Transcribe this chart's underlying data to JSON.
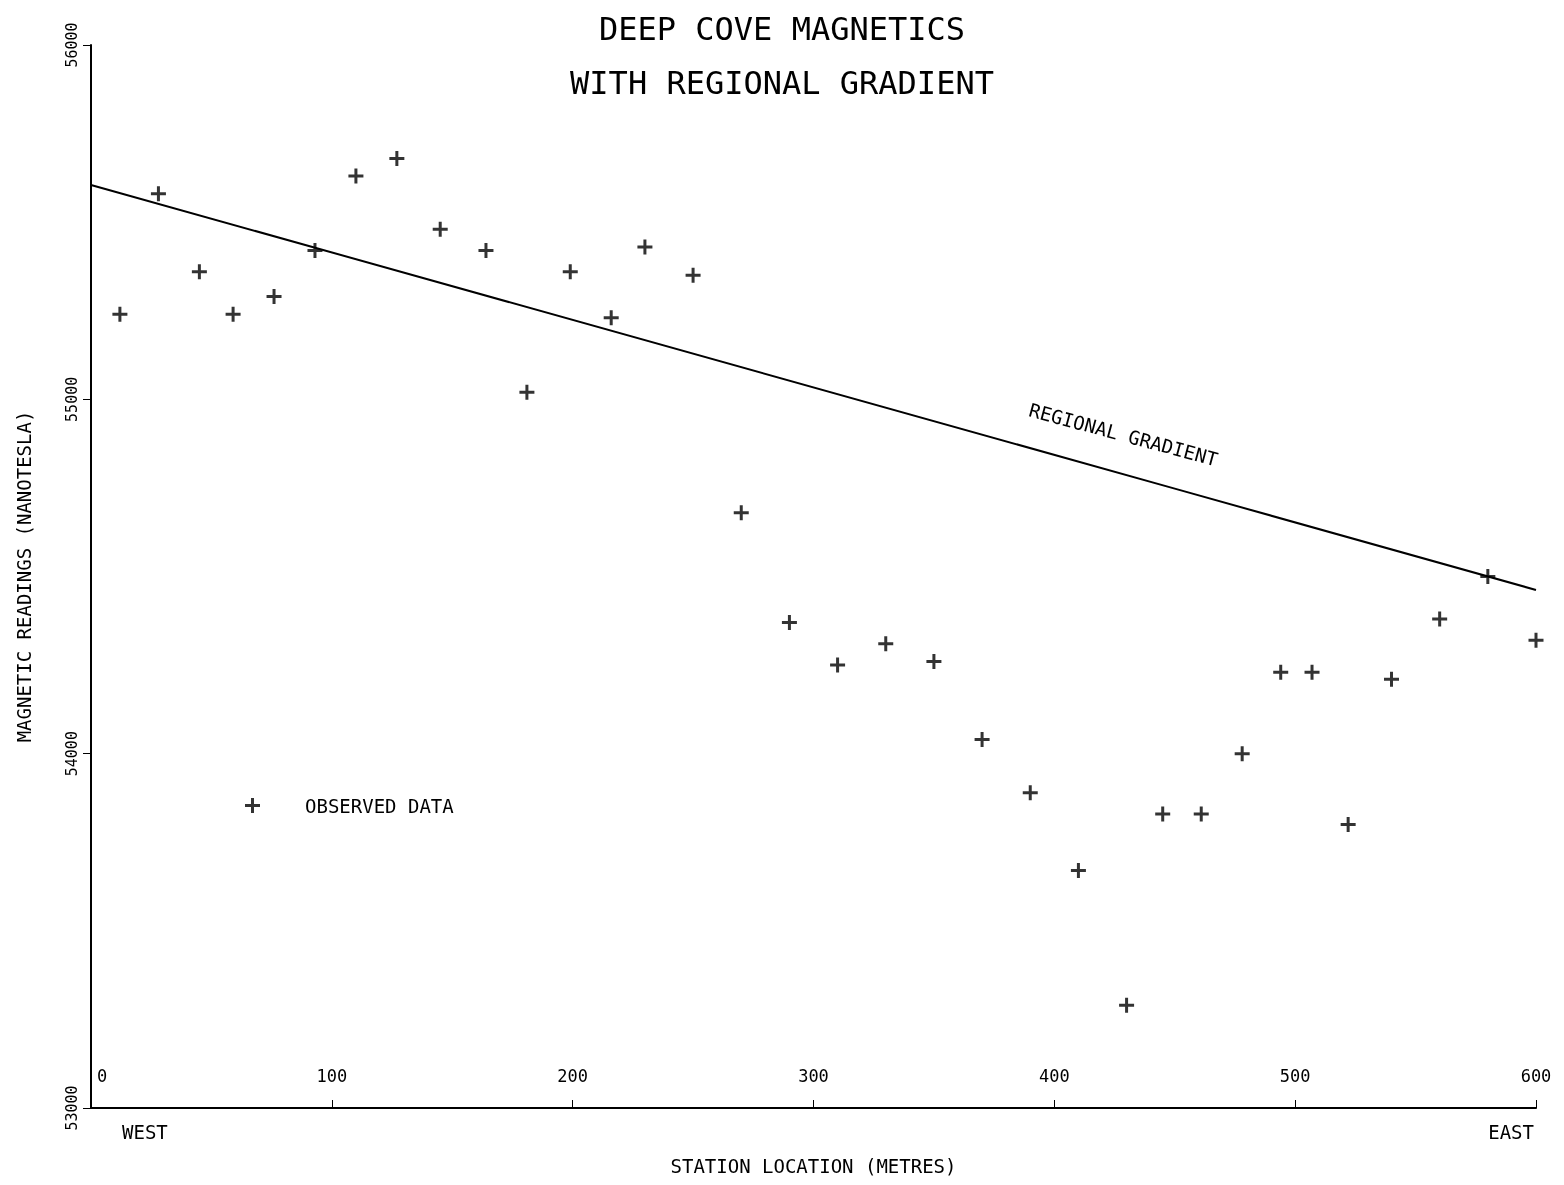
{
  "chart_data": {
    "type": "scatter",
    "title": "DEEP COVE MAGNETICS",
    "subtitle": "WITH REGIONAL GRADIENT",
    "xlabel": "STATION LOCATION (METRES)",
    "ylabel": "MAGNETIC READINGS (NANOTESLA)",
    "annotations": [
      "WEST",
      "EAST"
    ],
    "xlim": [
      0,
      600
    ],
    "xticks": [
      0,
      100,
      200,
      300,
      400,
      500,
      600
    ],
    "ylim": [
      53000,
      56000
    ],
    "yticks": [
      53000,
      54000,
      55000,
      56000
    ],
    "grid": false,
    "legend": "bottom left",
    "marker": "cross",
    "series": [
      {
        "name": "OBSERVED DATA",
        "color": "#000000",
        "x": [
          12,
          28,
          45,
          59,
          76,
          93,
          110,
          127,
          145,
          164,
          181,
          199,
          216,
          230,
          250,
          270,
          290,
          310,
          330,
          350,
          370,
          390,
          410,
          430,
          445,
          461,
          478,
          494,
          507,
          522,
          540,
          560,
          580,
          600
        ],
        "values": [
          55240,
          55580,
          55360,
          55240,
          55290,
          55420,
          55630,
          55680,
          55480,
          55420,
          55020,
          55360,
          55230,
          55430,
          55350,
          54680,
          54370,
          54250,
          54310,
          54260,
          54040,
          53890,
          53670,
          53290,
          53830,
          53830,
          54000,
          54230,
          54230,
          53800,
          54210,
          54380,
          54500,
          54320
        ]
      },
      {
        "name": "REGIONAL GRADIENT",
        "type": "line",
        "color": "#000000",
        "marker": "none",
        "line_style": "solid",
        "x": [
          0,
          450,
          600
        ],
        "values": [
          55605,
          54748,
          54462
        ]
      }
    ]
  }
}
